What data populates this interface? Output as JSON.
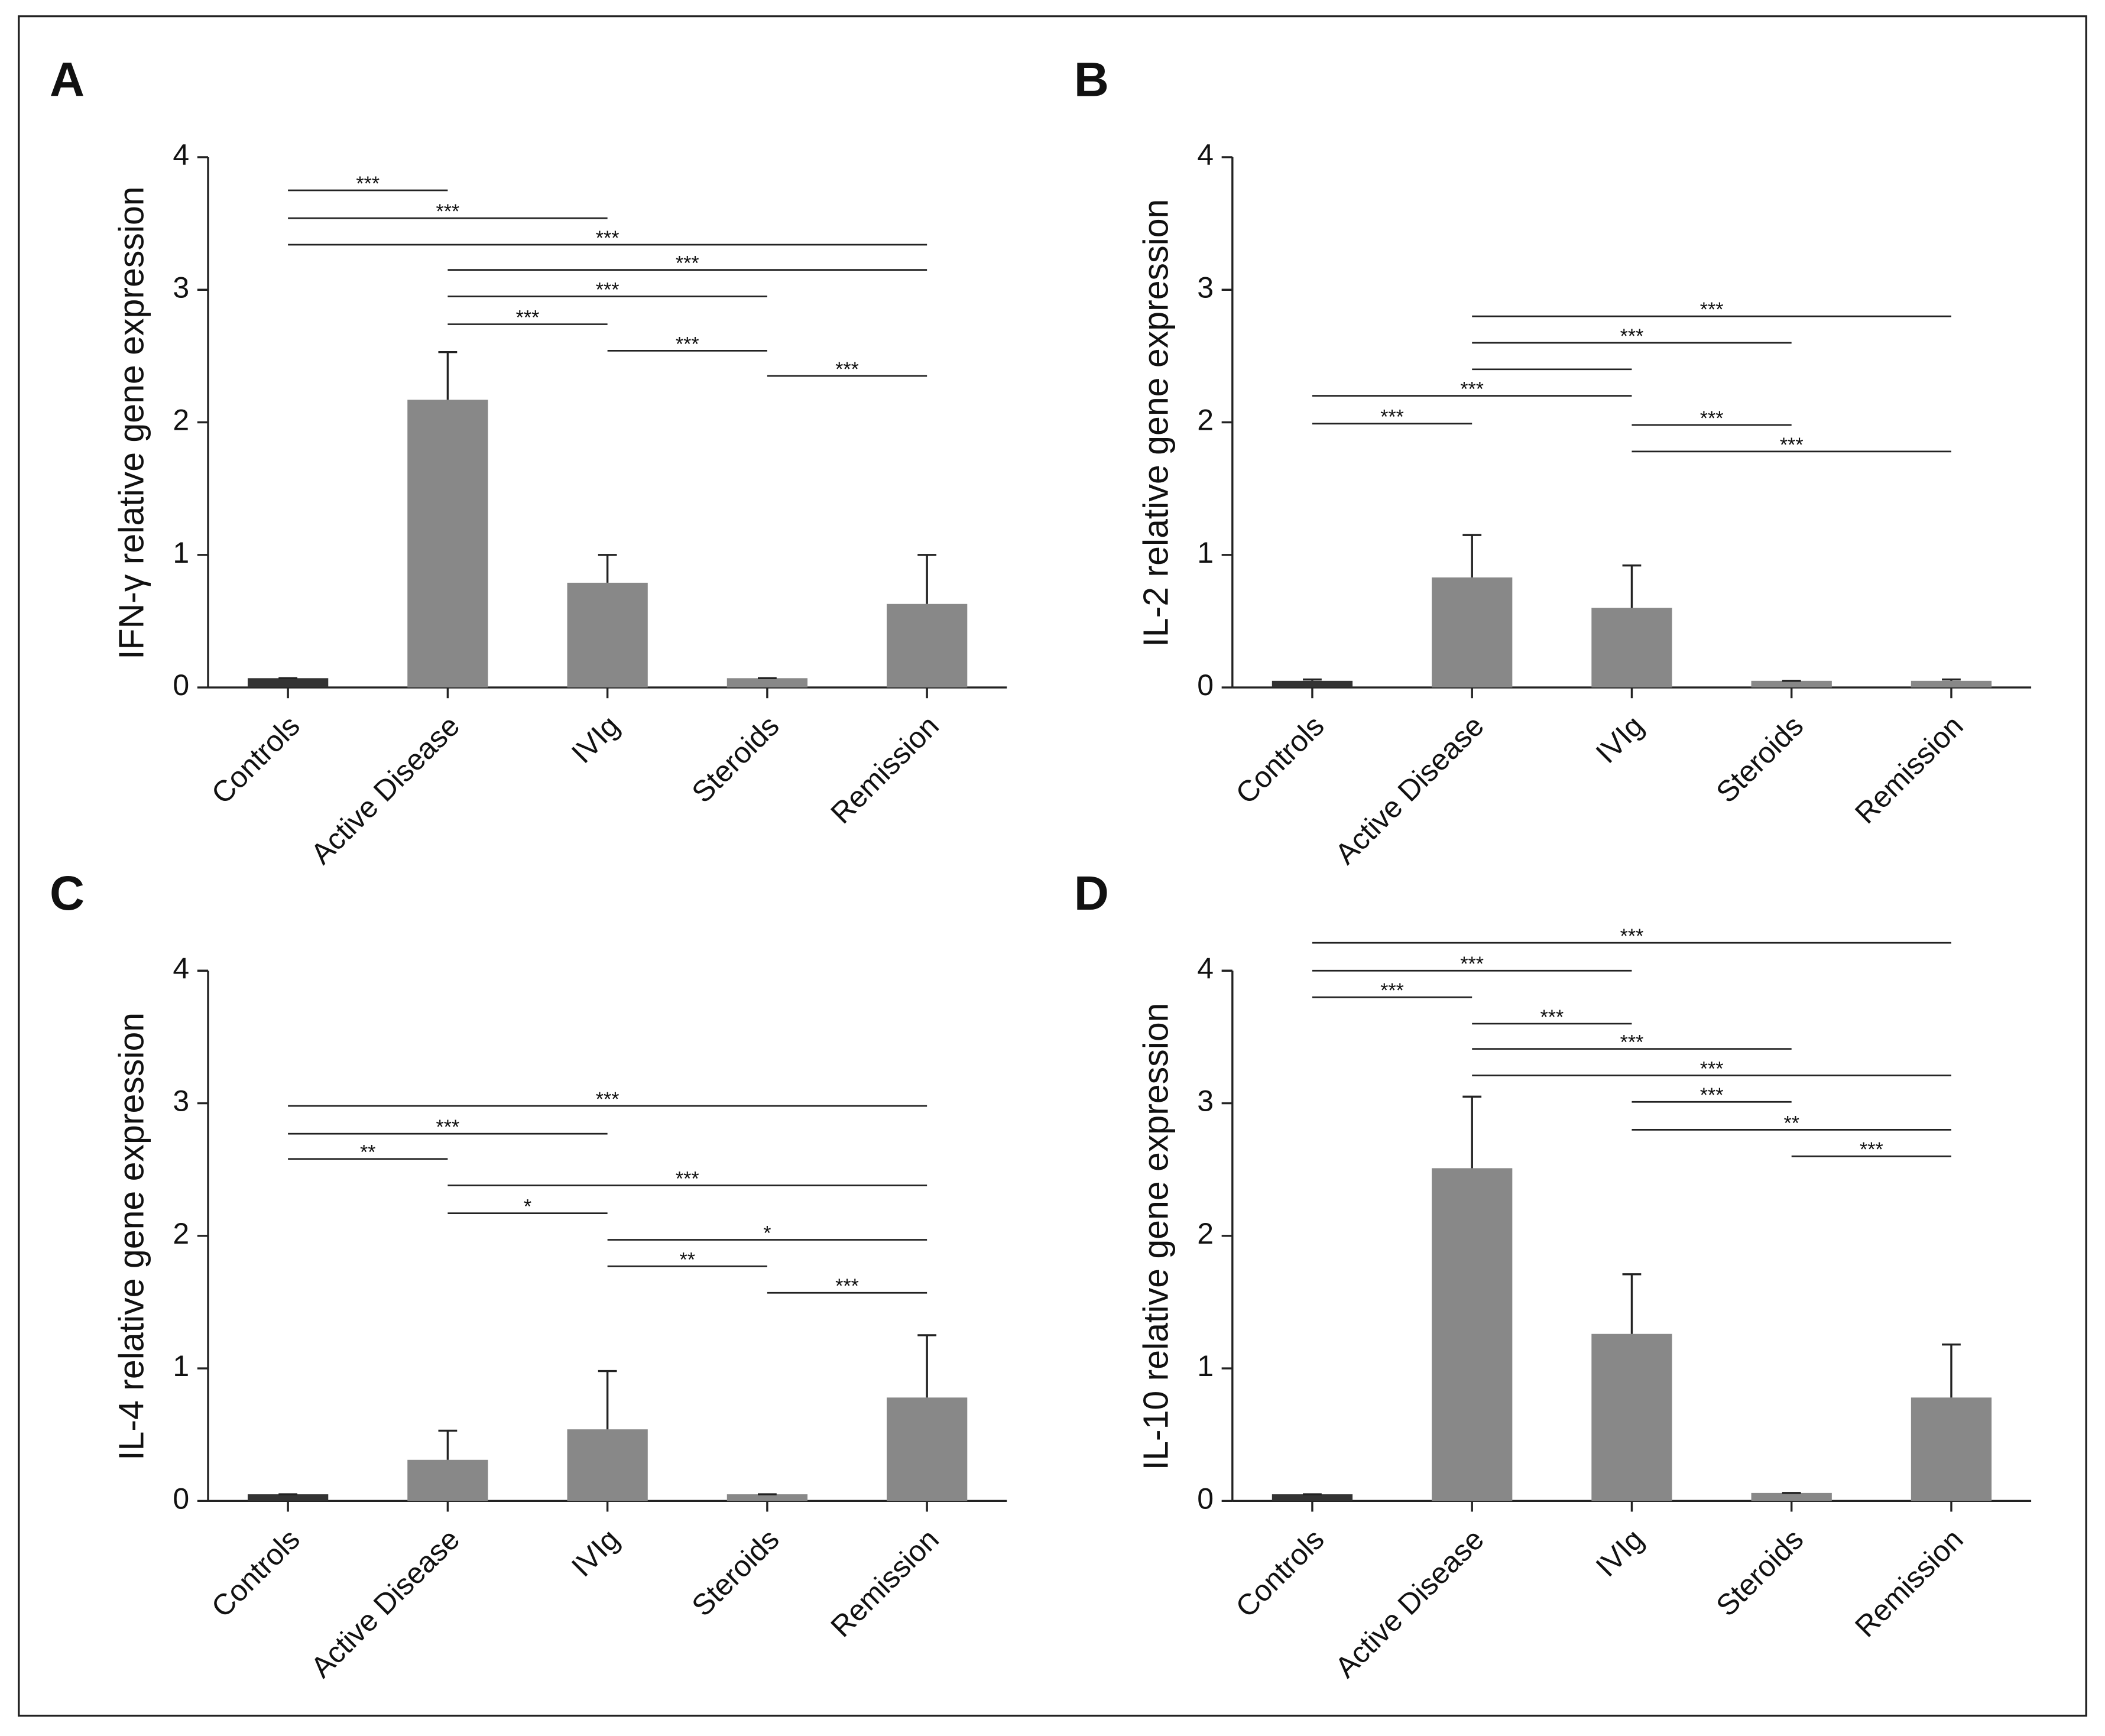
{
  "chart_data": [
    {
      "type": "bar",
      "panel": "A",
      "y_label": "IFN-γ relative gene expression",
      "categories": [
        "Controls",
        "Active Disease",
        "IVIg",
        "Steroids",
        "Remission"
      ],
      "values": [
        0.07,
        2.17,
        0.79,
        0.07,
        0.63
      ],
      "errors": [
        0,
        0.36,
        0.21,
        0,
        0.37
      ],
      "colors": [
        "#333333",
        "#888888",
        "#888888",
        "#888888",
        "#888888"
      ],
      "ylim": [
        0,
        4
      ],
      "yticks": [
        0,
        1,
        2,
        3,
        4
      ],
      "brackets": [
        {
          "from": 0,
          "to": 1,
          "y": 3.75,
          "label": "***"
        },
        {
          "from": 0,
          "to": 2,
          "y": 3.54,
          "label": "***"
        },
        {
          "from": 0,
          "to": 4,
          "y": 3.34,
          "label": "***"
        },
        {
          "from": 1,
          "to": 4,
          "y": 3.15,
          "label": "***"
        },
        {
          "from": 1,
          "to": 3,
          "y": 2.95,
          "label": "***"
        },
        {
          "from": 1,
          "to": 2,
          "y": 2.74,
          "label": "***"
        },
        {
          "from": 2,
          "to": 3,
          "y": 2.54,
          "label": "***"
        },
        {
          "from": 3,
          "to": 4,
          "y": 2.35,
          "label": "***"
        }
      ]
    },
    {
      "type": "bar",
      "panel": "B",
      "y_label": "IL-2 relative gene expression",
      "categories": [
        "Controls",
        "Active Disease",
        "IVIg",
        "Steroids",
        "Remission"
      ],
      "values": [
        0.05,
        0.83,
        0.6,
        0.05,
        0.05
      ],
      "errors": [
        0.01,
        0.32,
        0.32,
        0,
        0.01
      ],
      "colors": [
        "#333333",
        "#888888",
        "#888888",
        "#888888",
        "#888888"
      ],
      "ylim": [
        0,
        4
      ],
      "yticks": [
        0,
        1,
        2,
        3,
        4
      ],
      "brackets": [
        {
          "from": 1,
          "to": 4,
          "y": 2.8,
          "label": "***"
        },
        {
          "from": 1,
          "to": 3,
          "y": 2.6,
          "label": "***"
        },
        {
          "from": 1,
          "to": 2,
          "y": 2.4
        },
        {
          "from": 0,
          "to": 2,
          "y": 2.2,
          "label": "***"
        },
        {
          "from": 0,
          "to": 1,
          "y": 1.99,
          "label": "***"
        },
        {
          "from": 2,
          "to": 3,
          "y": 1.98,
          "label": "***"
        },
        {
          "from": 2,
          "to": 4,
          "y": 1.78,
          "label": "***"
        }
      ]
    },
    {
      "type": "bar",
      "panel": "C",
      "y_label": "IL-4 relative gene expression",
      "categories": [
        "Controls",
        "Active Disease",
        "IVIg",
        "Steroids",
        "Remission"
      ],
      "values": [
        0.05,
        0.31,
        0.54,
        0.05,
        0.78
      ],
      "errors": [
        0,
        0.22,
        0.44,
        0,
        0.47
      ],
      "colors": [
        "#333333",
        "#888888",
        "#888888",
        "#888888",
        "#888888"
      ],
      "ylim": [
        0,
        4
      ],
      "yticks": [
        0,
        1,
        2,
        3,
        4
      ],
      "brackets": [
        {
          "from": 0,
          "to": 4,
          "y": 2.98,
          "label": "***"
        },
        {
          "from": 0,
          "to": 2,
          "y": 2.77,
          "label": "***"
        },
        {
          "from": 0,
          "to": 1,
          "y": 2.58,
          "label": "**"
        },
        {
          "from": 1,
          "to": 4,
          "y": 2.38,
          "label": "***"
        },
        {
          "from": 1,
          "to": 2,
          "y": 2.17,
          "label": "*"
        },
        {
          "from": 2,
          "to": 4,
          "y": 1.97,
          "label": "*"
        },
        {
          "from": 2,
          "to": 3,
          "y": 1.77,
          "label": "**"
        },
        {
          "from": 3,
          "to": 4,
          "y": 1.57,
          "label": "***"
        }
      ]
    },
    {
      "type": "bar",
      "panel": "D",
      "y_label": "IL-10 relative gene expression",
      "categories": [
        "Controls",
        "Active Disease",
        "IVIg",
        "Steroids",
        "Remission"
      ],
      "values": [
        0.05,
        2.51,
        1.26,
        0.06,
        0.78
      ],
      "errors": [
        0,
        0.54,
        0.45,
        0,
        0.4
      ],
      "colors": [
        "#333333",
        "#888888",
        "#888888",
        "#888888",
        "#888888"
      ],
      "ylim": [
        0,
        4
      ],
      "yticks": [
        0,
        1,
        2,
        3,
        4
      ],
      "brackets": [
        {
          "from": 0,
          "to": 4,
          "y": 4.21,
          "label": "***"
        },
        {
          "from": 0,
          "to": 2,
          "y": 4.0,
          "label": "***"
        },
        {
          "from": 0,
          "to": 1,
          "y": 3.8,
          "label": "***"
        },
        {
          "from": 1,
          "to": 2,
          "y": 3.6,
          "label": "***"
        },
        {
          "from": 1,
          "to": 3,
          "y": 3.41,
          "label": "***"
        },
        {
          "from": 1,
          "to": 4,
          "y": 3.21,
          "label": "***"
        },
        {
          "from": 2,
          "to": 3,
          "y": 3.01,
          "label": "***"
        },
        {
          "from": 2,
          "to": 4,
          "y": 2.8,
          "label": "**"
        },
        {
          "from": 3,
          "to": 4,
          "y": 2.6,
          "label": "***"
        }
      ]
    }
  ]
}
